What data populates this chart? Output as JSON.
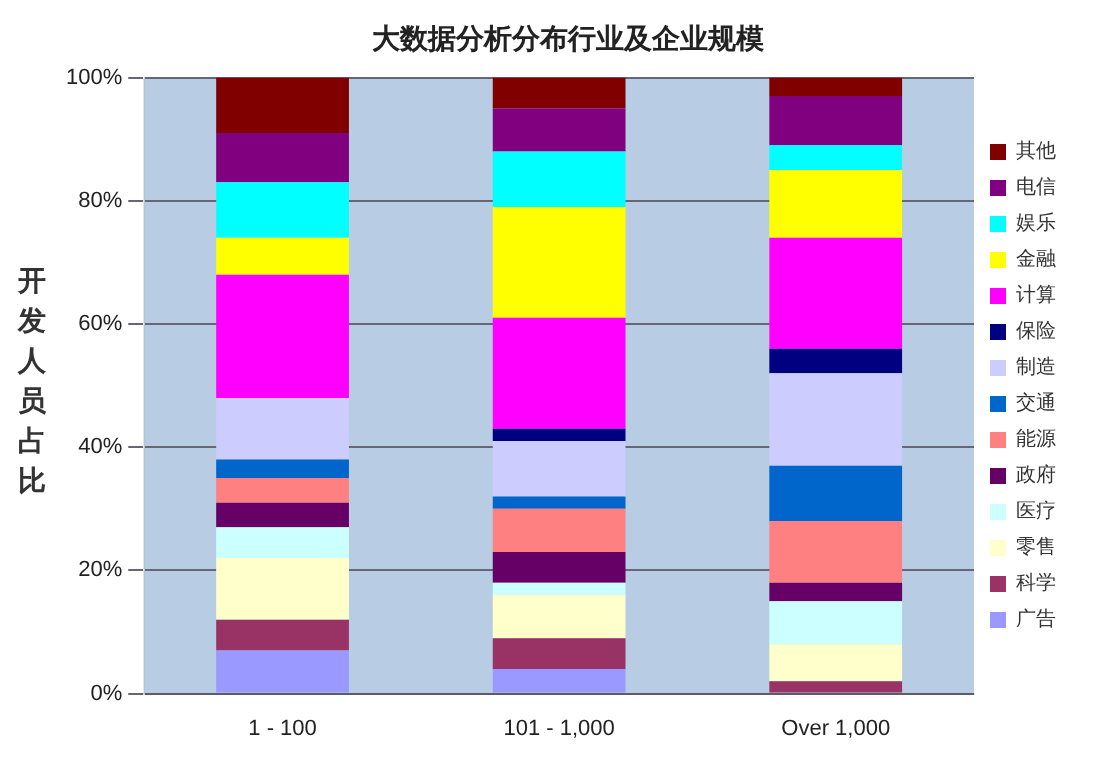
{
  "chart_data": {
    "type": "bar",
    "title": "大数据分析分布行业及企业规模",
    "ylabel": "开发人员占比",
    "categories": [
      "1 - 100",
      "101 - 1,000",
      "Over 1,000"
    ],
    "stacked": true,
    "legend": "right",
    "grid": "y",
    "ylim": [
      0,
      100
    ],
    "yticks": [
      {
        "value": 0,
        "label": "0%"
      },
      {
        "value": 20,
        "label": "20%"
      },
      {
        "value": 40,
        "label": "40%"
      },
      {
        "value": 60,
        "label": "60%"
      },
      {
        "value": 80,
        "label": "80%"
      },
      {
        "value": 100,
        "label": "100%"
      }
    ],
    "series": [
      {
        "name": "广告",
        "color": "#9999ff",
        "values": [
          7,
          4,
          0
        ]
      },
      {
        "name": "科学",
        "color": "#993366",
        "values": [
          5,
          5,
          2
        ]
      },
      {
        "name": "零售",
        "color": "#ffffcc",
        "values": [
          10,
          7,
          6
        ]
      },
      {
        "name": "医疗",
        "color": "#ccffff",
        "values": [
          5,
          2,
          7
        ]
      },
      {
        "name": "政府",
        "color": "#660066",
        "values": [
          4,
          5,
          3
        ]
      },
      {
        "name": "能源",
        "color": "#ff8080",
        "values": [
          4,
          7,
          10
        ]
      },
      {
        "name": "交通",
        "color": "#0066cc",
        "values": [
          3,
          2,
          9
        ]
      },
      {
        "name": "制造",
        "color": "#ccccff",
        "values": [
          10,
          9,
          15
        ]
      },
      {
        "name": "保险",
        "color": "#000080",
        "values": [
          0,
          2,
          4
        ]
      },
      {
        "name": "计算",
        "color": "#ff00ff",
        "values": [
          20,
          18,
          18
        ]
      },
      {
        "name": "金融",
        "color": "#ffff00",
        "values": [
          6,
          18,
          11
        ]
      },
      {
        "name": "娱乐",
        "color": "#00ffff",
        "values": [
          9,
          9,
          4
        ]
      },
      {
        "name": "电信",
        "color": "#800080",
        "values": [
          8,
          7,
          8
        ]
      },
      {
        "name": "其他",
        "color": "#800000",
        "values": [
          9,
          5,
          3
        ]
      }
    ]
  }
}
